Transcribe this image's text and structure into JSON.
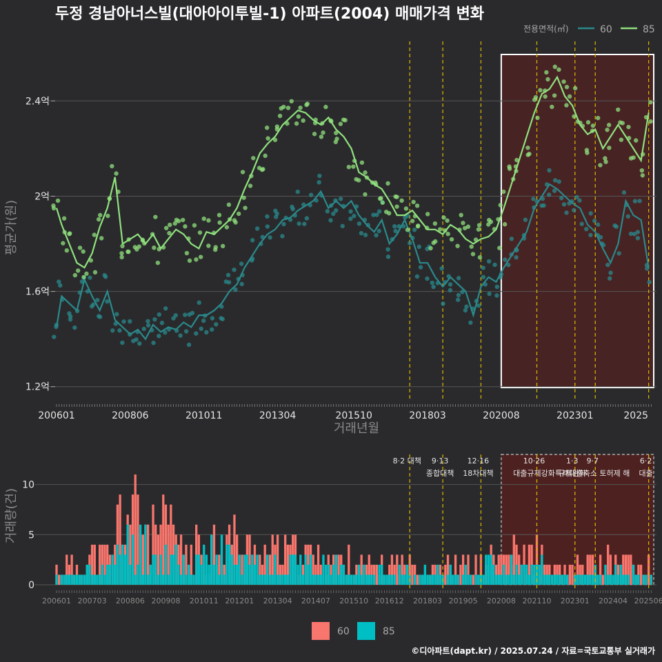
{
  "title": "두정 경남아너스빌(대아아이투빌-1) 아파트(2004) 매매가격 변화",
  "footer": "©디아파트(dapt.kr) / 2025.07.24 / 자료=국토교통부 실거래가",
  "colors": {
    "background": "#2a2a2c",
    "grid": "#555555",
    "area60": "#2a8a8c",
    "area85": "#90e27e",
    "bar60": "#f8766d",
    "bar85": "#00bfc4",
    "policy_line": "#d4b000",
    "highlight_fill": "#6b1a1a",
    "highlight_border_top": "#ffffff",
    "highlight_border_bottom": "#aaaaaa"
  },
  "chart_data": [
    {
      "type": "line",
      "panel": "price",
      "xlabel": "거래년월",
      "ylabel": "평균가(원)",
      "x_ticks": [
        "200601",
        "200806",
        "201011",
        "201304",
        "201510",
        "201803",
        "202008",
        "202301",
        "2025"
      ],
      "y_ticks": [
        {
          "value": 1.2,
          "label": "1.2억"
        },
        {
          "value": 1.6,
          "label": "1.6억"
        },
        {
          "value": 2.0,
          "label": "2억"
        },
        {
          "value": 2.4,
          "label": "2.4억"
        }
      ],
      "y_unit": "억원",
      "ylim": [
        1.15,
        2.65
      ],
      "legend_title": "전용면적(㎡)",
      "legend_placement": "top-right",
      "series": [
        {
          "name": "60",
          "color": "#2a8a8c",
          "points": [
            [
              "2006-01",
              1.45
            ],
            [
              "2006-03",
              1.58
            ],
            [
              "2006-06",
              1.55
            ],
            [
              "2006-09",
              1.52
            ],
            [
              "2006-12",
              1.65
            ],
            [
              "2007-03",
              1.58
            ],
            [
              "2007-06",
              1.52
            ],
            [
              "2007-09",
              1.6
            ],
            [
              "2007-12",
              1.48
            ],
            [
              "2008-03",
              1.45
            ],
            [
              "2008-06",
              1.42
            ],
            [
              "2008-09",
              1.44
            ],
            [
              "2008-12",
              1.4
            ],
            [
              "2009-03",
              1.46
            ],
            [
              "2009-06",
              1.43
            ],
            [
              "2009-09",
              1.45
            ],
            [
              "2009-12",
              1.44
            ],
            [
              "2010-03",
              1.47
            ],
            [
              "2010-06",
              1.45
            ],
            [
              "2010-09",
              1.5
            ],
            [
              "2010-12",
              1.5
            ],
            [
              "2011-03",
              1.52
            ],
            [
              "2011-06",
              1.55
            ],
            [
              "2011-09",
              1.6
            ],
            [
              "2011-12",
              1.63
            ],
            [
              "2012-03",
              1.7
            ],
            [
              "2012-06",
              1.75
            ],
            [
              "2012-09",
              1.8
            ],
            [
              "2012-12",
              1.84
            ],
            [
              "2013-03",
              1.86
            ],
            [
              "2013-06",
              1.9
            ],
            [
              "2013-09",
              1.91
            ],
            [
              "2013-12",
              1.94
            ],
            [
              "2014-03",
              1.96
            ],
            [
              "2014-06",
              1.98
            ],
            [
              "2014-09",
              2.02
            ],
            [
              "2014-12",
              1.95
            ],
            [
              "2015-03",
              1.98
            ],
            [
              "2015-06",
              1.95
            ],
            [
              "2015-09",
              1.98
            ],
            [
              "2015-12",
              1.92
            ],
            [
              "2016-03",
              1.88
            ],
            [
              "2016-06",
              1.85
            ],
            [
              "2016-09",
              1.9
            ],
            [
              "2016-12",
              1.8
            ],
            [
              "2017-03",
              1.84
            ],
            [
              "2017-06",
              1.9
            ],
            [
              "2017-09",
              1.82
            ],
            [
              "2017-12",
              1.72
            ],
            [
              "2018-03",
              1.72
            ],
            [
              "2018-06",
              1.66
            ],
            [
              "2018-09",
              1.62
            ],
            [
              "2018-12",
              1.66
            ],
            [
              "2019-03",
              1.63
            ],
            [
              "2019-06",
              1.6
            ],
            [
              "2019-09",
              1.5
            ],
            [
              "2019-12",
              1.62
            ],
            [
              "2020-03",
              1.66
            ],
            [
              "2020-06",
              1.64
            ],
            [
              "2020-09",
              1.7
            ],
            [
              "2020-12",
              1.75
            ],
            [
              "2021-03",
              1.8
            ],
            [
              "2021-06",
              1.85
            ],
            [
              "2021-09",
              1.95
            ],
            [
              "2021-12",
              2.0
            ],
            [
              "2022-03",
              2.05
            ],
            [
              "2022-06",
              2.03
            ],
            [
              "2022-09",
              2.0
            ],
            [
              "2022-12",
              1.97
            ],
            [
              "2023-03",
              1.95
            ],
            [
              "2023-06",
              1.88
            ],
            [
              "2023-09",
              1.85
            ],
            [
              "2023-12",
              1.78
            ],
            [
              "2024-03",
              1.72
            ],
            [
              "2024-06",
              1.8
            ],
            [
              "2024-09",
              1.98
            ],
            [
              "2024-12",
              1.92
            ],
            [
              "2025-03",
              1.9
            ],
            [
              "2025-06",
              1.7
            ]
          ]
        },
        {
          "name": "85",
          "color": "#90e27e",
          "points": [
            [
              "2006-01",
              1.95
            ],
            [
              "2006-03",
              1.88
            ],
            [
              "2006-06",
              1.8
            ],
            [
              "2006-09",
              1.72
            ],
            [
              "2006-12",
              1.7
            ],
            [
              "2007-03",
              1.76
            ],
            [
              "2007-06",
              1.87
            ],
            [
              "2007-09",
              1.95
            ],
            [
              "2007-12",
              2.08
            ],
            [
              "2008-03",
              1.8
            ],
            [
              "2008-06",
              1.82
            ],
            [
              "2008-09",
              1.84
            ],
            [
              "2008-12",
              1.8
            ],
            [
              "2009-03",
              1.84
            ],
            [
              "2009-06",
              1.78
            ],
            [
              "2009-09",
              1.82
            ],
            [
              "2009-12",
              1.86
            ],
            [
              "2010-03",
              1.84
            ],
            [
              "2010-06",
              1.8
            ],
            [
              "2010-09",
              1.78
            ],
            [
              "2010-12",
              1.85
            ],
            [
              "2011-03",
              1.84
            ],
            [
              "2011-06",
              1.87
            ],
            [
              "2011-09",
              1.9
            ],
            [
              "2011-12",
              1.95
            ],
            [
              "2012-03",
              2.03
            ],
            [
              "2012-06",
              2.1
            ],
            [
              "2012-09",
              2.18
            ],
            [
              "2012-12",
              2.22
            ],
            [
              "2013-03",
              2.25
            ],
            [
              "2013-06",
              2.3
            ],
            [
              "2013-09",
              2.33
            ],
            [
              "2013-12",
              2.36
            ],
            [
              "2014-03",
              2.35
            ],
            [
              "2014-06",
              2.32
            ],
            [
              "2014-09",
              2.3
            ],
            [
              "2014-12",
              2.33
            ],
            [
              "2015-03",
              2.28
            ],
            [
              "2015-06",
              2.25
            ],
            [
              "2015-09",
              2.2
            ],
            [
              "2015-12",
              2.1
            ],
            [
              "2016-03",
              2.08
            ],
            [
              "2016-06",
              2.05
            ],
            [
              "2016-09",
              2.03
            ],
            [
              "2016-12",
              1.98
            ],
            [
              "2017-03",
              1.92
            ],
            [
              "2017-06",
              1.92
            ],
            [
              "2017-09",
              1.94
            ],
            [
              "2017-12",
              1.9
            ],
            [
              "2018-03",
              1.86
            ],
            [
              "2018-06",
              1.86
            ],
            [
              "2018-09",
              1.84
            ],
            [
              "2018-12",
              1.88
            ],
            [
              "2019-03",
              1.86
            ],
            [
              "2019-06",
              1.82
            ],
            [
              "2019-09",
              1.8
            ],
            [
              "2019-12",
              1.82
            ],
            [
              "2020-03",
              1.83
            ],
            [
              "2020-06",
              1.86
            ],
            [
              "2020-09",
              1.95
            ],
            [
              "2020-12",
              2.05
            ],
            [
              "2021-03",
              2.15
            ],
            [
              "2021-06",
              2.25
            ],
            [
              "2021-09",
              2.35
            ],
            [
              "2021-12",
              2.43
            ],
            [
              "2022-03",
              2.45
            ],
            [
              "2022-06",
              2.5
            ],
            [
              "2022-09",
              2.42
            ],
            [
              "2022-12",
              2.38
            ],
            [
              "2023-03",
              2.3
            ],
            [
              "2023-06",
              2.26
            ],
            [
              "2023-09",
              2.28
            ],
            [
              "2023-12",
              2.2
            ],
            [
              "2024-03",
              2.25
            ],
            [
              "2024-06",
              2.3
            ],
            [
              "2024-09",
              2.25
            ],
            [
              "2024-12",
              2.2
            ],
            [
              "2025-03",
              2.15
            ],
            [
              "2025-06",
              2.35
            ]
          ]
        }
      ],
      "policy_dates": [
        "2017-08",
        "2018-09",
        "2019-12"
      ],
      "highlight_start": "2020-08",
      "highlight_policy_dates": [
        "2021-10",
        "2023-01",
        "2023-09",
        "2025-06"
      ]
    },
    {
      "type": "bar",
      "panel": "volume",
      "ylabel": "거래량(건)",
      "x_ticks": [
        "200601",
        "200703",
        "200806",
        "200908",
        "201011",
        "201201",
        "201304",
        "201407",
        "201510",
        "201612",
        "201803",
        "201905",
        "202008",
        "202110",
        "202301",
        "202404",
        "202506"
      ],
      "y_ticks": [
        0,
        5,
        10
      ],
      "ylim": [
        0,
        13
      ],
      "legend": [
        {
          "name": "60",
          "color": "#f8766d"
        },
        {
          "name": "85",
          "color": "#00bfc4"
        }
      ],
      "legend_placement": "bottom-center",
      "series": [
        {
          "name": "60",
          "yearly_monthly_avg": [
            [
              "2006",
              1.8
            ],
            [
              "2007",
              2.6
            ],
            [
              "2008",
              6.5
            ],
            [
              "2009",
              4.8
            ],
            [
              "2010",
              3.2
            ],
            [
              "2011",
              4.2
            ],
            [
              "2012",
              3.2
            ],
            [
              "2013",
              3.0
            ],
            [
              "2014",
              2.6
            ],
            [
              "2015",
              2.2
            ],
            [
              "2016",
              1.6
            ],
            [
              "2017",
              1.8
            ],
            [
              "2018",
              1.6
            ],
            [
              "2019",
              1.8
            ],
            [
              "2020",
              2.6
            ],
            [
              "2021",
              2.8
            ],
            [
              "2022",
              1.4
            ],
            [
              "2023",
              1.8
            ],
            [
              "2024",
              2.2
            ],
            [
              "2025",
              1.6
            ]
          ],
          "max": 13
        },
        {
          "name": "85",
          "yearly_monthly_avg": [
            [
              "2006",
              0.9
            ],
            [
              "2007",
              1.6
            ],
            [
              "2008",
              3.6
            ],
            [
              "2009",
              2.6
            ],
            [
              "2010",
              2.0
            ],
            [
              "2011",
              2.8
            ],
            [
              "2012",
              2.0
            ],
            [
              "2013",
              2.2
            ],
            [
              "2014",
              2.0
            ],
            [
              "2015",
              1.6
            ],
            [
              "2016",
              1.0
            ],
            [
              "2017",
              1.2
            ],
            [
              "2018",
              1.0
            ],
            [
              "2019",
              1.2
            ],
            [
              "2020",
              1.8
            ],
            [
              "2021",
              1.6
            ],
            [
              "2022",
              0.8
            ],
            [
              "2023",
              1.0
            ],
            [
              "2024",
              1.2
            ],
            [
              "2025",
              1.0
            ]
          ],
          "max": 7
        }
      ],
      "policy_annotations": [
        {
          "date": "2017-08",
          "label": "8·2 대책",
          "label2": ""
        },
        {
          "date": "2018-09",
          "label": "9·13",
          "label2": "종합대책"
        },
        {
          "date": "2019-12",
          "label": "12·16",
          "label2": "18차대책"
        },
        {
          "date": "2021-10",
          "label": "10·26",
          "label2": "대출규제강화"
        },
        {
          "date": "2023-01",
          "label": "1·3",
          "label2": "규제완화"
        },
        {
          "date": "2023-09",
          "label": "9·7",
          "label2": "특례대출축소 토허제 해"
        },
        {
          "date": "2025-06",
          "label": "6·2",
          "label2": "대출"
        }
      ],
      "highlight_start": "2020-08"
    }
  ]
}
